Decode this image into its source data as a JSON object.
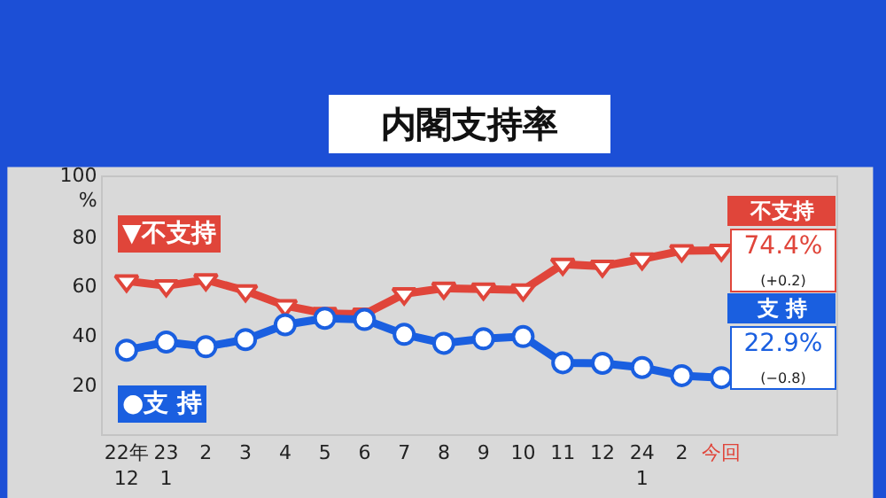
{
  "chart_data": {
    "type": "line",
    "title": "内閣支持率",
    "categories": [
      "22年\n12",
      "23\n1",
      "2",
      "3",
      "4",
      "5",
      "6",
      "7",
      "8",
      "9",
      "10",
      "11",
      "12",
      "24\n1",
      "2",
      "今回"
    ],
    "series": [
      {
        "name": "▼不支持",
        "color": "#e0453a",
        "marker": "triangle",
        "values": [
          62.0,
          60.1,
          62.5,
          58.0,
          52.0,
          48.9,
          48.6,
          56.8,
          59.1,
          58.7,
          58.4,
          68.8,
          68.0,
          70.9,
          74.2,
          74.4
        ]
      },
      {
        "name": "●支 持",
        "color": "#1a5fe0",
        "marker": "circle",
        "values": [
          34.0,
          37.3,
          35.4,
          38.3,
          44.3,
          46.9,
          46.4,
          40.4,
          36.8,
          38.6,
          39.5,
          28.9,
          28.7,
          27.0,
          23.7,
          22.9
        ]
      }
    ],
    "annotations": [
      "不支持",
      "74.4%",
      "(+0.2)",
      "支 持",
      "22.9%",
      "(−0.8)"
    ],
    "ylim": [
      0,
      104
    ],
    "yticks": [
      20,
      40,
      60,
      80,
      {
        "value": 100,
        "label": "100\n%"
      }
    ],
    "legend": false,
    "line_style": "solid"
  }
}
